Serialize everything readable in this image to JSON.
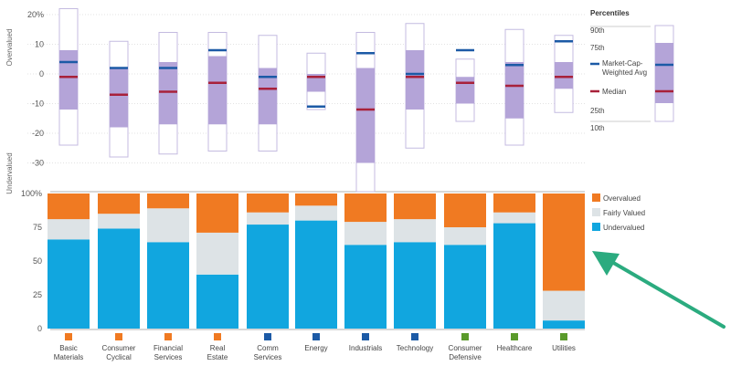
{
  "chart_data": [
    {
      "type": "box",
      "ylabel_top": "Overvalued",
      "ylabel_bottom": "Undervalued",
      "yticks": [
        "20%",
        "10",
        "0",
        "-10",
        "-20",
        "-30"
      ],
      "ylim": [
        -40,
        20
      ],
      "categories": [
        "Basic Materials",
        "Consumer Cyclical",
        "Financial Services",
        "Real Estate",
        "Comm Services",
        "Energy",
        "Industrials",
        "Technology",
        "Consumer Defensive",
        "Healthcare",
        "Utilities"
      ],
      "series": [
        {
          "name": "90th",
          "values": [
            22,
            11,
            14,
            14,
            13,
            7,
            14,
            17,
            5,
            15,
            13
          ]
        },
        {
          "name": "75th",
          "values": [
            8,
            2,
            4,
            6,
            2,
            0,
            2,
            8,
            -1,
            4,
            4
          ]
        },
        {
          "name": "25th",
          "values": [
            -12,
            -18,
            -17,
            -17,
            -17,
            -6,
            -30,
            -12,
            -10,
            -15,
            -5
          ]
        },
        {
          "name": "10th",
          "values": [
            -24,
            -28,
            -27,
            -26,
            -26,
            -12,
            -40,
            -25,
            -16,
            -24,
            -13
          ]
        },
        {
          "name": "Median",
          "values": [
            -1,
            -7,
            -6,
            -3,
            -5,
            -1,
            -12,
            -1,
            -3,
            -4,
            -1
          ]
        },
        {
          "name": "Market-Cap-Weighted Avg",
          "values": [
            4,
            2,
            2,
            8,
            -1,
            -11,
            7,
            0,
            8,
            3,
            11
          ]
        }
      ],
      "legend": {
        "title": "Percentiles",
        "labels": [
          "90th",
          "75th",
          "Market-Cap-Weighted Avg",
          "Median",
          "25th",
          "10th"
        ],
        "placement": "right"
      }
    },
    {
      "type": "bar",
      "stacked": true,
      "yticks": [
        "100%",
        "75",
        "50",
        "25",
        "0"
      ],
      "ylim": [
        0,
        100
      ],
      "categories": [
        "Basic Materials",
        "Consumer Cyclical",
        "Financial Services",
        "Real Estate",
        "Comm Services",
        "Energy",
        "Industrials",
        "Technology",
        "Consumer Defensive",
        "Healthcare",
        "Utilities"
      ],
      "series": [
        {
          "name": "Undervalued",
          "values": [
            66,
            74,
            64,
            40,
            77,
            80,
            62,
            64,
            62,
            78,
            6
          ]
        },
        {
          "name": "Fairly Valued",
          "values": [
            15,
            11,
            25,
            31,
            9,
            11,
            17,
            17,
            13,
            8,
            22
          ]
        },
        {
          "name": "Overvalued",
          "values": [
            19,
            15,
            11,
            29,
            14,
            9,
            21,
            19,
            25,
            14,
            72
          ]
        }
      ],
      "legend": {
        "placement": "right",
        "labels": [
          "Overvalued",
          "Fairly Valued",
          "Undervalued"
        ]
      }
    }
  ],
  "colors": {
    "box_fill": "#b4a4d8",
    "box_outline": "#c4bbe0",
    "median": "#a8213a",
    "weighted_avg": "#1c5aa6",
    "undervalued": "#11a6df",
    "fairly_valued": "#dde3e6",
    "overvalued": "#f07a22",
    "grid": "#c8c8c8",
    "text": "#555555",
    "arrow": "#2bab7f"
  }
}
